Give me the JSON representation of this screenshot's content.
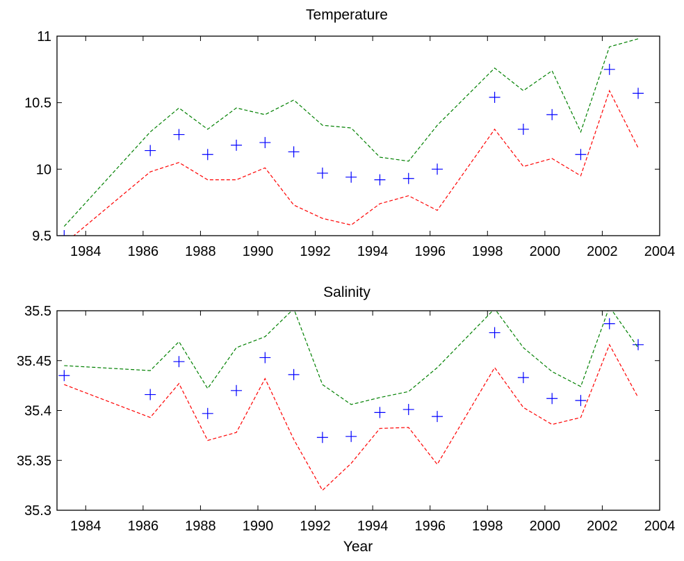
{
  "colors": {
    "markers": "#0000ff",
    "upper_bound": "#008000",
    "lower_bound": "#ff0000"
  },
  "chart_data": [
    {
      "type": "scatter",
      "title": "Temperature",
      "xlabel": "",
      "ylabel": "",
      "xlim": [
        1983,
        2004
      ],
      "ylim": [
        9.5,
        11
      ],
      "xticks": [
        "1984",
        "1986",
        "1988",
        "1990",
        "1992",
        "1994",
        "1996",
        "1998",
        "2000",
        "2002",
        "2004"
      ],
      "yticks": [
        "9.5",
        "10",
        "10.5",
        "11"
      ],
      "grid": false,
      "series": [
        {
          "marker": "+",
          "line": "none",
          "color": "#0000ff",
          "x": [
            1983.25,
            1986.25,
            1987.25,
            1988.25,
            1989.25,
            1990.25,
            1991.25,
            1992.25,
            1993.25,
            1994.25,
            1995.25,
            1996.25,
            1998.25,
            1999.25,
            2000.25,
            2001.25,
            2002.25,
            2003.25
          ],
          "y": [
            9.5,
            10.14,
            10.26,
            10.11,
            10.18,
            10.2,
            10.13,
            9.97,
            9.94,
            9.92,
            9.93,
            10.0,
            10.54,
            10.3,
            10.41,
            10.11,
            10.75,
            10.57
          ]
        },
        {
          "marker": "none",
          "line": "dashed",
          "color": "#008000",
          "x": [
            1983.25,
            1986.25,
            1987.25,
            1988.25,
            1989.25,
            1990.25,
            1991.25,
            1992.25,
            1993.25,
            1994.25,
            1995.25,
            1996.25,
            1998.25,
            1999.25,
            2000.25,
            2001.25,
            2002.25,
            2003.25
          ],
          "y": [
            9.57,
            10.28,
            10.46,
            10.3,
            10.46,
            10.41,
            10.52,
            10.33,
            10.31,
            10.09,
            10.06,
            10.33,
            10.76,
            10.59,
            10.74,
            10.28,
            10.92,
            10.98
          ]
        },
        {
          "marker": "none",
          "line": "dashed",
          "color": "#ff0000",
          "x": [
            1983.25,
            1986.25,
            1987.25,
            1988.25,
            1989.25,
            1990.25,
            1991.25,
            1992.25,
            1993.25,
            1994.25,
            1995.25,
            1996.25,
            1998.25,
            1999.25,
            2000.25,
            2001.25,
            2002.25,
            2003.25
          ],
          "y": [
            9.44,
            9.98,
            10.05,
            9.92,
            9.92,
            10.01,
            9.73,
            9.63,
            9.58,
            9.74,
            9.8,
            9.69,
            10.3,
            10.02,
            10.08,
            9.95,
            10.59,
            10.16
          ]
        }
      ]
    },
    {
      "type": "scatter",
      "title": "Salinity",
      "xlabel": "Year",
      "ylabel": "",
      "xlim": [
        1983,
        2004
      ],
      "ylim": [
        35.3,
        35.5
      ],
      "xticks": [
        "1984",
        "1986",
        "1988",
        "1990",
        "1992",
        "1994",
        "1996",
        "1998",
        "2000",
        "2002",
        "2004"
      ],
      "yticks": [
        "35.3",
        "35.35",
        "35.4",
        "35.45",
        "35.5"
      ],
      "grid": false,
      "series": [
        {
          "marker": "+",
          "line": "none",
          "color": "#0000ff",
          "x": [
            1983.25,
            1986.25,
            1987.25,
            1988.25,
            1989.25,
            1990.25,
            1991.25,
            1992.25,
            1993.25,
            1994.25,
            1995.25,
            1996.25,
            1998.25,
            1999.25,
            2000.25,
            2001.25,
            2002.25,
            2003.25
          ],
          "y": [
            35.435,
            35.416,
            35.449,
            35.397,
            35.42,
            35.453,
            35.436,
            35.373,
            35.374,
            35.398,
            35.401,
            35.394,
            35.478,
            35.433,
            35.412,
            35.41,
            35.487,
            35.466
          ]
        },
        {
          "marker": "none",
          "line": "dashed",
          "color": "#008000",
          "x": [
            1983.25,
            1986.25,
            1987.25,
            1988.25,
            1989.25,
            1990.25,
            1991.25,
            1992.25,
            1993.25,
            1994.25,
            1995.25,
            1996.25,
            1998.25,
            1999.25,
            2000.25,
            2001.25,
            2002.25,
            2003.25
          ],
          "y": [
            35.445,
            35.44,
            35.469,
            35.422,
            35.463,
            35.474,
            35.502,
            35.426,
            35.406,
            35.413,
            35.419,
            35.443,
            35.502,
            35.463,
            35.439,
            35.424,
            35.504,
            35.463
          ]
        },
        {
          "marker": "none",
          "line": "dashed",
          "color": "#ff0000",
          "x": [
            1983.25,
            1986.25,
            1987.25,
            1988.25,
            1989.25,
            1990.25,
            1991.25,
            1992.25,
            1993.25,
            1994.25,
            1995.25,
            1996.25,
            1998.25,
            1999.25,
            2000.25,
            2001.25,
            2002.25,
            2003.25
          ],
          "y": [
            35.426,
            35.393,
            35.427,
            35.37,
            35.378,
            35.432,
            35.371,
            35.32,
            35.347,
            35.382,
            35.383,
            35.346,
            35.443,
            35.403,
            35.386,
            35.393,
            35.466,
            35.413
          ]
        }
      ]
    }
  ]
}
